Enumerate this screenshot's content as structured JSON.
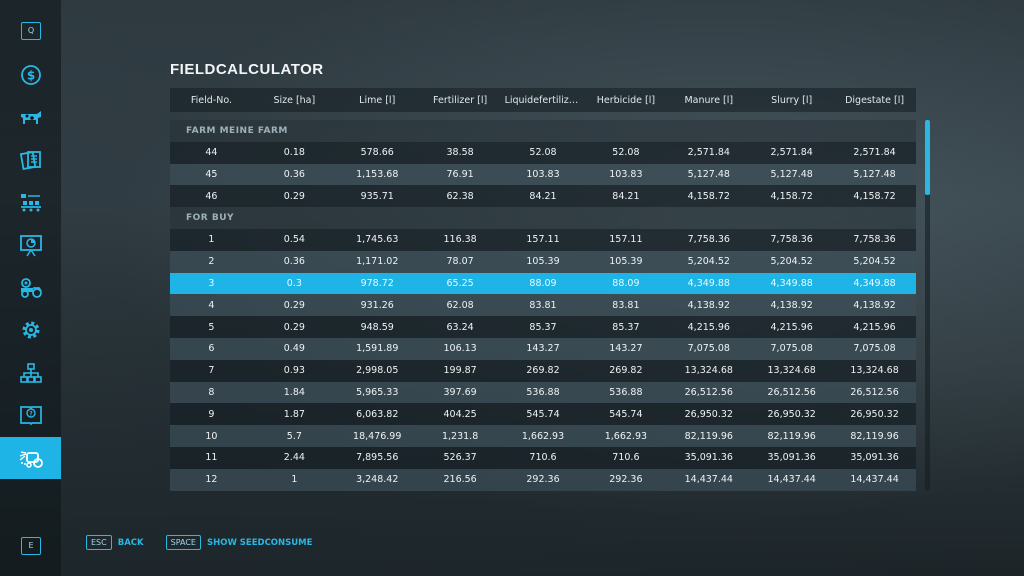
{
  "sidebar": {
    "top_key": "Q",
    "bottom_key": "E",
    "items": [
      {
        "icon": "dollar-icon"
      },
      {
        "icon": "cow-icon"
      },
      {
        "icon": "contracts-icon"
      },
      {
        "icon": "production-icon"
      },
      {
        "icon": "presentation-icon"
      },
      {
        "icon": "vehicles-icon"
      },
      {
        "icon": "gear-icon"
      },
      {
        "icon": "hierarchy-icon"
      },
      {
        "icon": "help-book-icon"
      },
      {
        "icon": "field-calculator-icon",
        "active": true
      }
    ]
  },
  "title": "FIELDCALCULATOR",
  "table": {
    "columns": [
      "Field-No.",
      "Size [ha]",
      "Lime [l]",
      "Fertilizer [l]",
      "Liquidefertilize...",
      "Herbicide [l]",
      "Manure [l]",
      "Slurry [l]",
      "Digestate [l]"
    ],
    "sections": [
      {
        "label": "FARM MEINE FARM",
        "rows": [
          [
            "44",
            "0.18",
            "578.66",
            "38.58",
            "52.08",
            "52.08",
            "2,571.84",
            "2,571.84",
            "2,571.84"
          ],
          [
            "45",
            "0.36",
            "1,153.68",
            "76.91",
            "103.83",
            "103.83",
            "5,127.48",
            "5,127.48",
            "5,127.48"
          ],
          [
            "46",
            "0.29",
            "935.71",
            "62.38",
            "84.21",
            "84.21",
            "4,158.72",
            "4,158.72",
            "4,158.72"
          ]
        ]
      },
      {
        "label": "FOR BUY",
        "rows": [
          [
            "1",
            "0.54",
            "1,745.63",
            "116.38",
            "157.11",
            "157.11",
            "7,758.36",
            "7,758.36",
            "7,758.36"
          ],
          [
            "2",
            "0.36",
            "1,171.02",
            "78.07",
            "105.39",
            "105.39",
            "5,204.52",
            "5,204.52",
            "5,204.52"
          ],
          [
            "3",
            "0.3",
            "978.72",
            "65.25",
            "88.09",
            "88.09",
            "4,349.88",
            "4,349.88",
            "4,349.88"
          ],
          [
            "4",
            "0.29",
            "931.26",
            "62.08",
            "83.81",
            "83.81",
            "4,138.92",
            "4,138.92",
            "4,138.92"
          ],
          [
            "5",
            "0.29",
            "948.59",
            "63.24",
            "85.37",
            "85.37",
            "4,215.96",
            "4,215.96",
            "4,215.96"
          ],
          [
            "6",
            "0.49",
            "1,591.89",
            "106.13",
            "143.27",
            "143.27",
            "7,075.08",
            "7,075.08",
            "7,075.08"
          ],
          [
            "7",
            "0.93",
            "2,998.05",
            "199.87",
            "269.82",
            "269.82",
            "13,324.68",
            "13,324.68",
            "13,324.68"
          ],
          [
            "8",
            "1.84",
            "5,965.33",
            "397.69",
            "536.88",
            "536.88",
            "26,512.56",
            "26,512.56",
            "26,512.56"
          ],
          [
            "9",
            "1.87",
            "6,063.82",
            "404.25",
            "545.74",
            "545.74",
            "26,950.32",
            "26,950.32",
            "26,950.32"
          ],
          [
            "10",
            "5.7",
            "18,476.99",
            "1,231.8",
            "1,662.93",
            "1,662.93",
            "82,119.96",
            "82,119.96",
            "82,119.96"
          ],
          [
            "11",
            "2.44",
            "7,895.56",
            "526.37",
            "710.6",
            "710.6",
            "35,091.36",
            "35,091.36",
            "35,091.36"
          ],
          [
            "12",
            "1",
            "3,248.42",
            "216.56",
            "292.36",
            "292.36",
            "14,437.44",
            "14,437.44",
            "14,437.44"
          ]
        ]
      }
    ],
    "selected_field": "3"
  },
  "footer": {
    "back_key": "ESC",
    "back_label": "BACK",
    "seed_key": "SPACE",
    "seed_label": "SHOW SEEDCONSUME"
  },
  "colors": {
    "accent": "#1fb4e6"
  }
}
